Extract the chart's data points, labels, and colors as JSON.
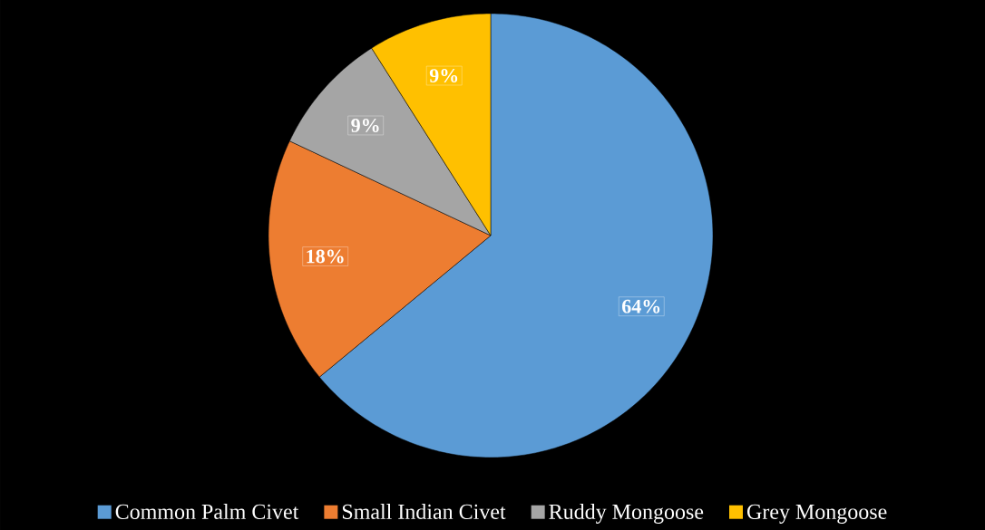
{
  "chart_data": {
    "type": "pie",
    "categories": [
      "Common Palm Civet",
      "Small Indian Civet",
      "Ruddy Mongoose",
      "Grey Mongoose"
    ],
    "values": [
      64,
      18,
      9,
      9
    ],
    "colors": [
      "#5b9bd5",
      "#ed7d31",
      "#a5a5a5",
      "#ffc000"
    ],
    "value_labels": [
      "64%",
      "18%",
      "9%",
      "9%"
    ],
    "legend": "bottom"
  }
}
